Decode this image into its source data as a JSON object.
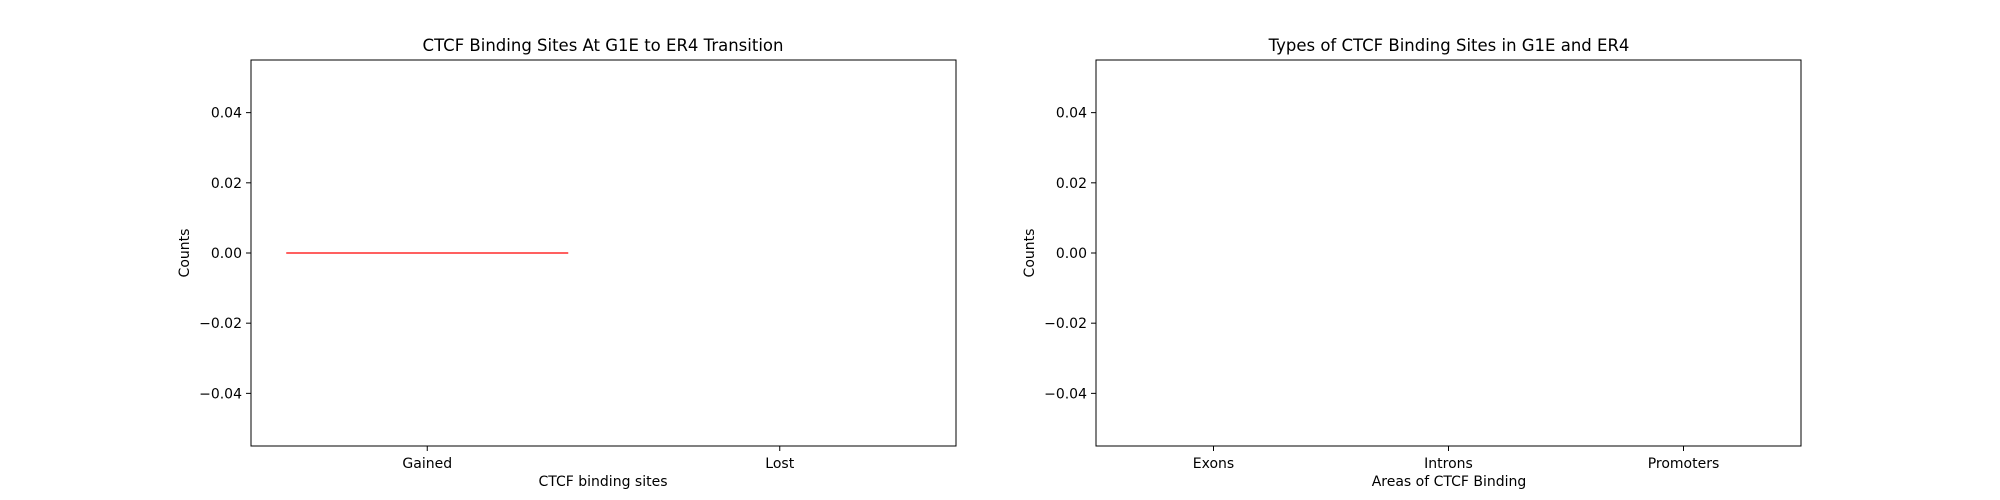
{
  "chart_data": [
    {
      "type": "bar",
      "title": "CTCF Binding Sites At G1E to ER4 Transition",
      "xlabel": "CTCF binding sites",
      "ylabel": "Counts",
      "categories": [
        "Gained",
        "Lost"
      ],
      "values": [
        0,
        0
      ],
      "bar_color": "#ff0000",
      "ylim": [
        -0.055,
        0.055
      ],
      "yticks": [
        -0.04,
        -0.02,
        0.0,
        0.02,
        0.04
      ],
      "ytick_labels": [
        "−0.04",
        "−0.02",
        "0.00",
        "0.02",
        "0.04"
      ],
      "grid": false,
      "legend": "none"
    },
    {
      "type": "bar",
      "title": "Types of CTCF Binding Sites in G1E and ER4",
      "xlabel": "Areas of CTCF Binding",
      "ylabel": "Counts",
      "categories": [
        "Exons",
        "Introns",
        "Promoters"
      ],
      "values": [
        0,
        0,
        0
      ],
      "ylim": [
        -0.055,
        0.055
      ],
      "yticks": [
        -0.04,
        -0.02,
        0.0,
        0.02,
        0.04
      ],
      "ytick_labels": [
        "−0.04",
        "−0.02",
        "0.00",
        "0.02",
        "0.04"
      ],
      "grid": false,
      "legend": "none"
    }
  ]
}
